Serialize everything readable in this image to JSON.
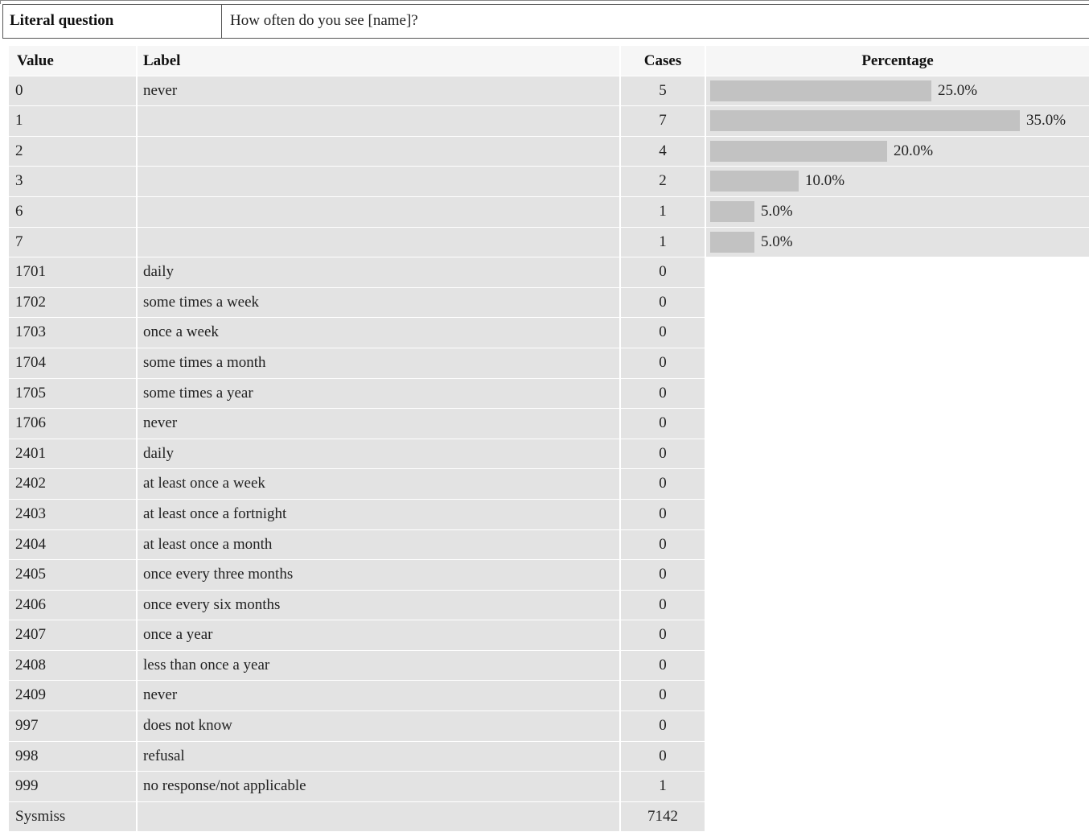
{
  "question": {
    "label": "Literal question",
    "text": "How often do you see [name]?"
  },
  "table": {
    "headers": {
      "value": "Value",
      "label": "Label",
      "cases": "Cases",
      "percentage": "Percentage"
    },
    "rows": [
      {
        "value": "0",
        "label": "never",
        "cases": "5",
        "percent": 25.0,
        "percent_label": "25.0%"
      },
      {
        "value": "1",
        "label": "",
        "cases": "7",
        "percent": 35.0,
        "percent_label": "35.0%"
      },
      {
        "value": "2",
        "label": "",
        "cases": "4",
        "percent": 20.0,
        "percent_label": "20.0%"
      },
      {
        "value": "3",
        "label": "",
        "cases": "2",
        "percent": 10.0,
        "percent_label": "10.0%"
      },
      {
        "value": "6",
        "label": "",
        "cases": "1",
        "percent": 5.0,
        "percent_label": "5.0%"
      },
      {
        "value": "7",
        "label": "",
        "cases": "1",
        "percent": 5.0,
        "percent_label": "5.0%"
      },
      {
        "value": "1701",
        "label": "daily",
        "cases": "0"
      },
      {
        "value": "1702",
        "label": "some times a week",
        "cases": "0"
      },
      {
        "value": "1703",
        "label": "once a week",
        "cases": "0"
      },
      {
        "value": "1704",
        "label": "some times a month",
        "cases": "0"
      },
      {
        "value": "1705",
        "label": "some times a year",
        "cases": "0"
      },
      {
        "value": "1706",
        "label": "never",
        "cases": "0"
      },
      {
        "value": "2401",
        "label": "daily",
        "cases": "0"
      },
      {
        "value": "2402",
        "label": "at least once a week",
        "cases": "0"
      },
      {
        "value": "2403",
        "label": "at least once a fortnight",
        "cases": "0"
      },
      {
        "value": "2404",
        "label": "at least once a month",
        "cases": "0"
      },
      {
        "value": "2405",
        "label": "once every three months",
        "cases": "0"
      },
      {
        "value": "2406",
        "label": "once every six months",
        "cases": "0"
      },
      {
        "value": "2407",
        "label": "once a year",
        "cases": "0"
      },
      {
        "value": "2408",
        "label": "less than once a year",
        "cases": "0"
      },
      {
        "value": "2409",
        "label": "never",
        "cases": "0"
      },
      {
        "value": "997",
        "label": "does not know",
        "cases": "0"
      },
      {
        "value": "998",
        "label": "refusal",
        "cases": "0"
      },
      {
        "value": "999",
        "label": "no response/not applicable",
        "cases": "1"
      },
      {
        "value": "Sysmiss",
        "label": "",
        "cases": "7142"
      }
    ]
  },
  "colors": {
    "row_background": "#e3e3e3",
    "header_background": "#f6f6f6",
    "bar": "#c2c2c2"
  }
}
